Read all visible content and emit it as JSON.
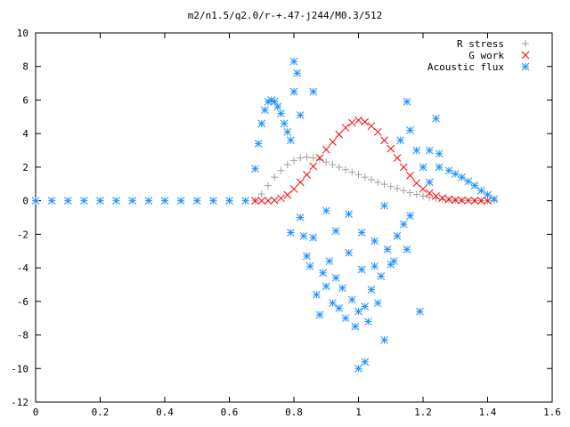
{
  "chart_data": {
    "type": "scatter",
    "title": "m2/n1.5/q2.0/r-+.47-j244/M0.3/512",
    "xlabel": "",
    "ylabel": "",
    "xlim": [
      0,
      1.6
    ],
    "ylim": [
      -12,
      10
    ],
    "x_ticks": [
      "0",
      "0.2",
      "0.4",
      "0.6",
      "0.8",
      "1",
      "1.2",
      "1.4",
      "1.6"
    ],
    "y_ticks": [
      "-12",
      "-10",
      "-8",
      "-6",
      "-4",
      "-2",
      "0",
      "2",
      "4",
      "6",
      "8",
      "10"
    ],
    "grid": false,
    "legend_position": "top-right",
    "series": [
      {
        "name": "R stress",
        "marker": "+",
        "color": "#a0a0a0",
        "points": [
          [
            0.68,
            0.02
          ],
          [
            0.7,
            0.4
          ],
          [
            0.72,
            0.9
          ],
          [
            0.74,
            1.4
          ],
          [
            0.76,
            1.8
          ],
          [
            0.78,
            2.15
          ],
          [
            0.8,
            2.4
          ],
          [
            0.82,
            2.55
          ],
          [
            0.84,
            2.6
          ],
          [
            0.86,
            2.55
          ],
          [
            0.88,
            2.45
          ],
          [
            0.9,
            2.3
          ],
          [
            0.92,
            2.15
          ],
          [
            0.94,
            2.0
          ],
          [
            0.96,
            1.85
          ],
          [
            0.98,
            1.7
          ],
          [
            1.0,
            1.55
          ],
          [
            1.02,
            1.4
          ],
          [
            1.04,
            1.25
          ],
          [
            1.06,
            1.1
          ],
          [
            1.08,
            0.98
          ],
          [
            1.1,
            0.85
          ],
          [
            1.12,
            0.72
          ],
          [
            1.14,
            0.6
          ],
          [
            1.16,
            0.48
          ],
          [
            1.18,
            0.38
          ],
          [
            1.2,
            0.28
          ],
          [
            1.22,
            0.2
          ],
          [
            1.24,
            0.13
          ],
          [
            1.26,
            0.08
          ],
          [
            1.28,
            0.05
          ],
          [
            1.3,
            0.03
          ],
          [
            1.32,
            0.02
          ],
          [
            1.34,
            0.01
          ],
          [
            1.36,
            0.0
          ],
          [
            1.38,
            0.0
          ],
          [
            1.4,
            0.0
          ],
          [
            1.42,
            0.0
          ]
        ]
      },
      {
        "name": "G work",
        "marker": "x",
        "color": "#ff0000",
        "points": [
          [
            0.68,
            0.0
          ],
          [
            0.7,
            0.0
          ],
          [
            0.72,
            0.0
          ],
          [
            0.74,
            0.02
          ],
          [
            0.76,
            0.15
          ],
          [
            0.78,
            0.35
          ],
          [
            0.8,
            0.7
          ],
          [
            0.82,
            1.1
          ],
          [
            0.84,
            1.55
          ],
          [
            0.86,
            2.05
          ],
          [
            0.88,
            2.55
          ],
          [
            0.9,
            3.05
          ],
          [
            0.92,
            3.5
          ],
          [
            0.94,
            3.95
          ],
          [
            0.96,
            4.35
          ],
          [
            0.98,
            4.65
          ],
          [
            1.0,
            4.8
          ],
          [
            1.02,
            4.7
          ],
          [
            1.04,
            4.45
          ],
          [
            1.06,
            4.1
          ],
          [
            1.08,
            3.6
          ],
          [
            1.1,
            3.1
          ],
          [
            1.12,
            2.55
          ],
          [
            1.14,
            2.0
          ],
          [
            1.16,
            1.5
          ],
          [
            1.18,
            1.05
          ],
          [
            1.2,
            0.7
          ],
          [
            1.22,
            0.45
          ],
          [
            1.24,
            0.28
          ],
          [
            1.26,
            0.16
          ],
          [
            1.28,
            0.08
          ],
          [
            1.3,
            0.04
          ],
          [
            1.32,
            0.02
          ],
          [
            1.34,
            0.01
          ],
          [
            1.36,
            0.0
          ],
          [
            1.38,
            0.0
          ],
          [
            1.4,
            0.0
          ]
        ]
      },
      {
        "name": "Acoustic flux",
        "marker": "*",
        "color": "#1e90ff",
        "points": [
          [
            0,
            0
          ],
          [
            0.05,
            0
          ],
          [
            0.1,
            0
          ],
          [
            0.15,
            0
          ],
          [
            0.2,
            0
          ],
          [
            0.25,
            0
          ],
          [
            0.3,
            0
          ],
          [
            0.35,
            0
          ],
          [
            0.4,
            0
          ],
          [
            0.45,
            0
          ],
          [
            0.5,
            0
          ],
          [
            0.55,
            0
          ],
          [
            0.6,
            0
          ],
          [
            0.65,
            0
          ],
          [
            0.68,
            1.9
          ],
          [
            0.69,
            3.4
          ],
          [
            0.7,
            4.6
          ],
          [
            0.71,
            5.4
          ],
          [
            0.72,
            5.9
          ],
          [
            0.73,
            6.0
          ],
          [
            0.74,
            5.9
          ],
          [
            0.75,
            5.6
          ],
          [
            0.76,
            5.2
          ],
          [
            0.77,
            4.6
          ],
          [
            0.78,
            4.1
          ],
          [
            0.79,
            3.6
          ],
          [
            0.8,
            6.5
          ],
          [
            0.8,
            8.3
          ],
          [
            0.81,
            7.6
          ],
          [
            0.82,
            5.1
          ],
          [
            0.79,
            -1.9
          ],
          [
            0.82,
            -1.0
          ],
          [
            0.83,
            -2.1
          ],
          [
            0.84,
            -3.3
          ],
          [
            0.85,
            -3.9
          ],
          [
            0.86,
            -2.2
          ],
          [
            0.87,
            -5.6
          ],
          [
            0.88,
            -6.8
          ],
          [
            0.89,
            -4.3
          ],
          [
            0.9,
            -5.1
          ],
          [
            0.91,
            -3.6
          ],
          [
            0.92,
            -6.1
          ],
          [
            0.93,
            -4.6
          ],
          [
            0.94,
            -6.4
          ],
          [
            0.95,
            -5.2
          ],
          [
            0.96,
            -7.0
          ],
          [
            0.97,
            -3.1
          ],
          [
            0.98,
            -5.9
          ],
          [
            0.99,
            -7.5
          ],
          [
            1.0,
            -6.6
          ],
          [
            1.01,
            -4.1
          ],
          [
            1.02,
            -6.3
          ],
          [
            1.03,
            -7.2
          ],
          [
            1.04,
            -5.3
          ],
          [
            1.05,
            -3.9
          ],
          [
            1.06,
            -6.1
          ],
          [
            1.07,
            -4.5
          ],
          [
            1.08,
            -8.3
          ],
          [
            1.0,
            -10.0
          ],
          [
            1.02,
            -9.6
          ],
          [
            1.09,
            -2.9
          ],
          [
            1.1,
            -3.8
          ],
          [
            1.12,
            -2.1
          ],
          [
            1.14,
            -1.4
          ],
          [
            1.16,
            -0.9
          ],
          [
            1.19,
            -6.6
          ],
          [
            0.86,
            6.5
          ],
          [
            0.9,
            -0.6
          ],
          [
            0.93,
            -1.8
          ],
          [
            0.97,
            -0.8
          ],
          [
            1.01,
            -1.9
          ],
          [
            1.05,
            -2.4
          ],
          [
            1.08,
            -0.3
          ],
          [
            1.11,
            -3.6
          ],
          [
            1.15,
            -2.9
          ],
          [
            1.13,
            3.6
          ],
          [
            1.16,
            4.2
          ],
          [
            1.18,
            3.0
          ],
          [
            1.2,
            2.0
          ],
          [
            1.22,
            1.1
          ],
          [
            1.24,
            4.9
          ],
          [
            1.25,
            2.8
          ],
          [
            1.15,
            5.9
          ],
          [
            1.22,
            3.0
          ],
          [
            1.25,
            2.0
          ],
          [
            1.28,
            1.8
          ],
          [
            1.3,
            1.6
          ],
          [
            1.32,
            1.4
          ],
          [
            1.34,
            1.15
          ],
          [
            1.36,
            0.9
          ],
          [
            1.38,
            0.6
          ],
          [
            1.4,
            0.35
          ],
          [
            1.42,
            0.1
          ]
        ]
      }
    ]
  }
}
